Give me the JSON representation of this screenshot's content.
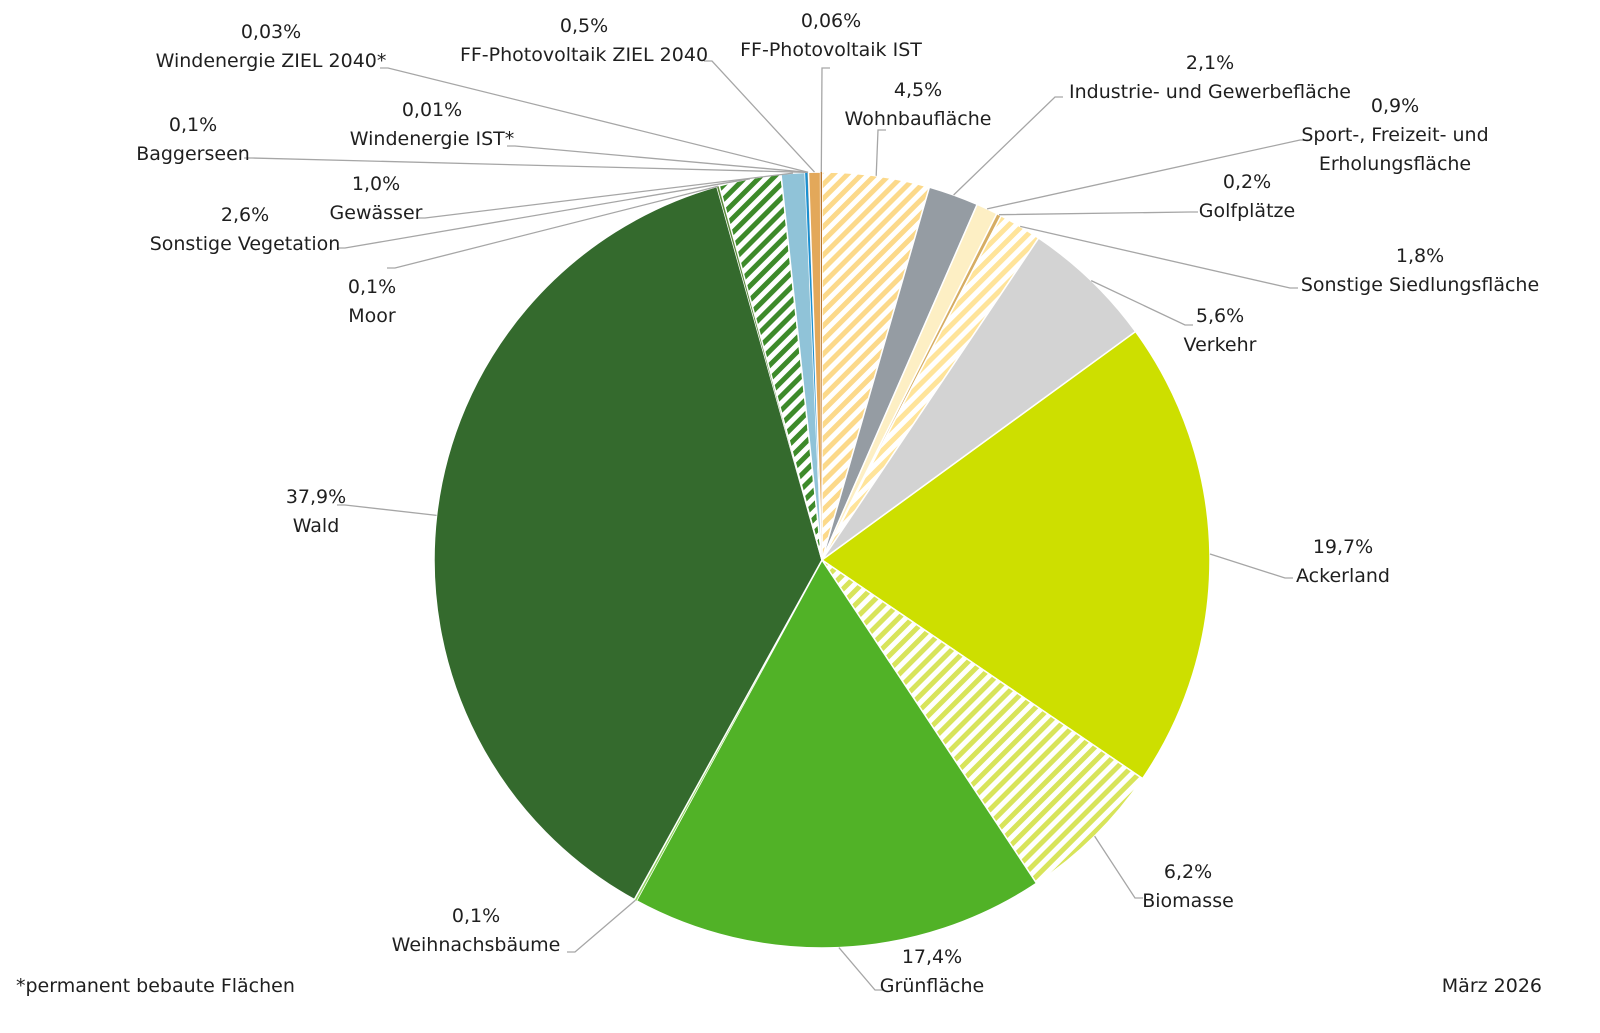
{
  "chart_data": {
    "type": "pie",
    "start": "top",
    "direction": "clockwise",
    "slices": [
      {
        "name": "Wohnbaufläche",
        "pct": "4,5%",
        "value": 4.5,
        "color": "#fcd98a",
        "hatched": true
      },
      {
        "name": "Industrie- und Gewerbefläche",
        "pct": "2,1%",
        "value": 2.1,
        "color": "#959ca3",
        "hatched": false
      },
      {
        "name": "Sport-, Freizeit- und Erholungsfläche",
        "pct": "0,9%",
        "value": 0.9,
        "color": "#fdefc4",
        "hatched": false
      },
      {
        "name": "Golfplätze",
        "pct": "0,2%",
        "value": 0.2,
        "color": "#d6ad63",
        "hatched": false
      },
      {
        "name": "Sonstige Siedlungsfläche",
        "pct": "1,8%",
        "value": 1.8,
        "color": "#ffe49a",
        "hatched": true
      },
      {
        "name": "Verkehr",
        "pct": "5,6%",
        "value": 5.6,
        "color": "#d3d3d3",
        "hatched": false
      },
      {
        "name": "Ackerland",
        "pct": "19,7%",
        "value": 19.7,
        "color": "#cddf00",
        "hatched": false
      },
      {
        "name": "Biomasse",
        "pct": "6,2%",
        "value": 6.2,
        "color": "#d8e45a",
        "hatched": true
      },
      {
        "name": "Grünfläche",
        "pct": "17,4%",
        "value": 17.4,
        "color": "#51b227",
        "hatched": false
      },
      {
        "name": "Weihnachsbäume",
        "pct": "0,1%",
        "value": 0.1,
        "color": "#8fd45e",
        "hatched": false
      },
      {
        "name": "Wald",
        "pct": "37,9%",
        "value": 37.9,
        "color": "#346a2d",
        "hatched": false
      },
      {
        "name": "Moor",
        "pct": "0,1%",
        "value": 0.1,
        "color": "#5a8a3a",
        "hatched": false
      },
      {
        "name": "Sonstige Vegetation",
        "pct": "2,6%",
        "value": 2.6,
        "color": "#3d8a2a",
        "hatched": true
      },
      {
        "name": "Gewässer",
        "pct": "1,0%",
        "value": 1.0,
        "color": "#90c3d8",
        "hatched": false
      },
      {
        "name": "Baggerseen",
        "pct": "0,1%",
        "value": 0.1,
        "color": "#1a8fd0",
        "hatched": false
      },
      {
        "name": "Windenergie IST*",
        "pct": "0,01%",
        "value": 0.01,
        "color": "#7a5a3a",
        "hatched": false
      },
      {
        "name": "Windenergie ZIEL 2040*",
        "pct": "0,03%",
        "value": 0.03,
        "color": "#a08060",
        "hatched": false
      },
      {
        "name": "FF-Photovoltaik ZIEL 2040",
        "pct": "0,5%",
        "value": 0.5,
        "color": "#e3a85a",
        "hatched": false
      },
      {
        "name": "FF-Photovoltaik IST",
        "pct": "0,06%",
        "value": 0.06,
        "color": "#b8742a",
        "hatched": false
      }
    ]
  },
  "footnote": "*permanent bebaute Flächen",
  "date": "März 2026"
}
